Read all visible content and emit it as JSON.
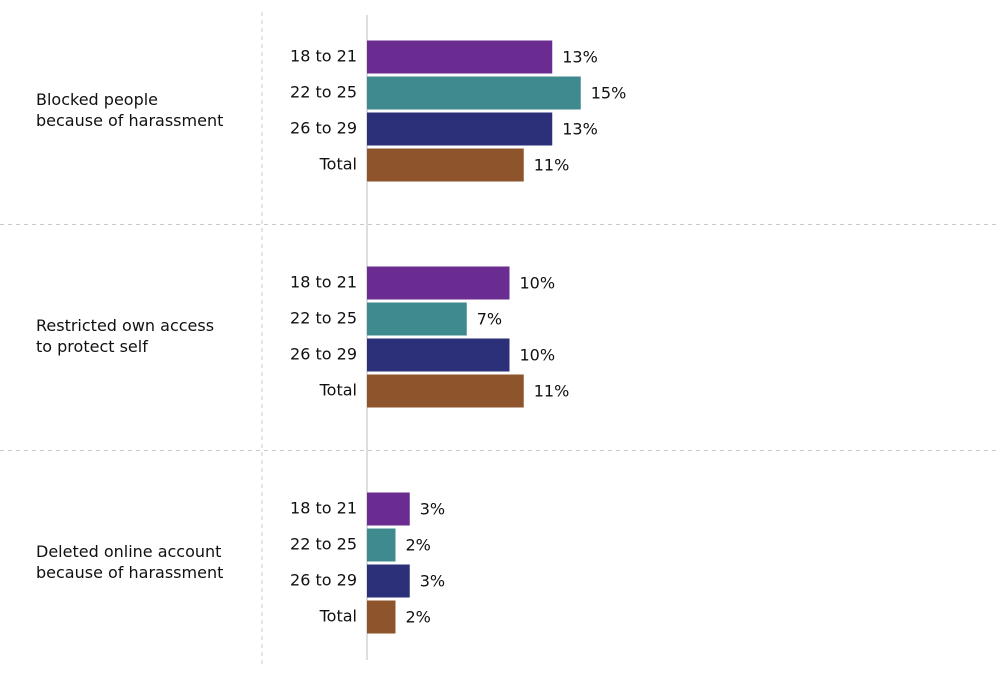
{
  "chart_data": {
    "type": "bar",
    "orientation": "horizontal",
    "categories": [
      [
        "Blocked people",
        "because of harassment"
      ],
      [
        "Restricted own access",
        "to protect self"
      ],
      [
        "Deleted online account",
        "because of harassment"
      ]
    ],
    "series": [
      {
        "name": "18 to 21",
        "color": "#6a2c91",
        "values": [
          13,
          10,
          3
        ],
        "value_labels": [
          "13%",
          "10%",
          "3%"
        ]
      },
      {
        "name": "22 to 25",
        "color": "#3f8a8e",
        "values": [
          15,
          7,
          2
        ],
        "value_labels": [
          "15%",
          "7%",
          "2%"
        ]
      },
      {
        "name": "26 to 29",
        "color": "#2b3078",
        "values": [
          13,
          10,
          3
        ],
        "value_labels": [
          "13%",
          "10%",
          "3%"
        ]
      },
      {
        "name": "Total",
        "color": "#8e552c",
        "values": [
          11,
          11,
          2
        ],
        "value_labels": [
          "11%",
          "11%",
          "2%"
        ]
      }
    ]
  }
}
